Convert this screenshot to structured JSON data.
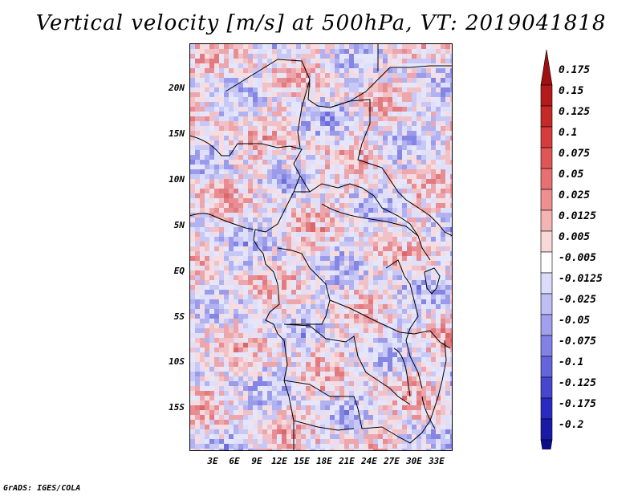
{
  "title": "Vertical velocity [m/s] at 500hPa, VT: 2019041818",
  "footer": "GrADS: IGES/COLA",
  "map": {
    "variable": "Vertical velocity",
    "units": "m/s",
    "level": "500hPa",
    "valid_time": "2019041818",
    "lat_ticks": [
      "20N",
      "15N",
      "10N",
      "5N",
      "EQ",
      "5S",
      "10S",
      "15S"
    ],
    "lon_ticks": [
      "3E",
      "6E",
      "9E",
      "12E",
      "15E",
      "18E",
      "21E",
      "24E",
      "27E",
      "30E",
      "33E"
    ]
  },
  "colorbar": {
    "labels": [
      "0.175",
      "0.15",
      "0.125",
      "0.1",
      "0.075",
      "0.05",
      "0.025",
      "0.0125",
      "0.005",
      "-0.005",
      "-0.0125",
      "-0.025",
      "-0.05",
      "-0.075",
      "-0.1",
      "-0.125",
      "-0.175",
      "-0.2"
    ],
    "colors": [
      "#a01010",
      "#b41a1a",
      "#c72828",
      "#d63c3c",
      "#e05656",
      "#e87070",
      "#ef9090",
      "#f5b4b4",
      "#fad8d8",
      "#ffffff",
      "#dcdcfa",
      "#bebef5",
      "#a0a0ee",
      "#8282e6",
      "#6464dc",
      "#4646d0",
      "#2a2ac2",
      "#1a1aa8",
      "#0d0d8a"
    ]
  }
}
